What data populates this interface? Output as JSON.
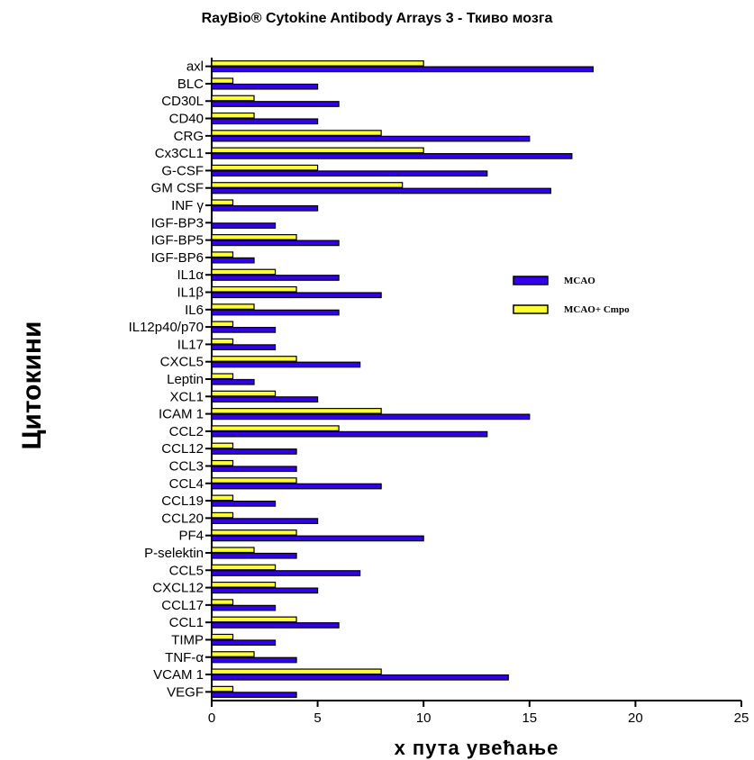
{
  "chart_data": {
    "type": "bar",
    "orientation": "horizontal",
    "title": "RayBio® Cytokine Antibody Arrays 3 -  Ткиво мозга",
    "xlabel": "x пута увећање",
    "ylabel": "Цитокини",
    "xlim": [
      0,
      25
    ],
    "xticks": [
      0,
      5,
      10,
      15,
      20,
      25
    ],
    "grid": false,
    "legend_position": "right-middle",
    "categories": [
      "axl",
      "BLC",
      "CD30L",
      "CD40",
      "CRG",
      "Cx3CL1",
      "G-CSF",
      "GM CSF",
      "INF γ",
      "IGF-BP3",
      "IGF-BP5",
      "IGF-BP6",
      "IL1α",
      "IL1β",
      "IL6",
      "IL12p40/p70",
      "IL17",
      "CXCL5",
      "Leptin",
      "XCL1",
      "ICAM 1",
      "CCL2",
      "CCL12",
      "CCL3",
      "CCL4",
      "CCL19",
      "CCL20",
      "PF4",
      "P-selektin",
      "CCL5",
      "CXCL12",
      "CCL17",
      "CCL1",
      "TIMP",
      "TNF-α",
      "VCAM 1",
      "VEGF"
    ],
    "series": [
      {
        "name": "MCAO",
        "color": "#3300ee",
        "values": [
          18,
          5,
          6,
          5,
          15,
          17,
          13,
          16,
          5,
          3,
          6,
          2,
          6,
          8,
          6,
          3,
          3,
          7,
          2,
          5,
          15,
          13,
          4,
          4,
          8,
          3,
          5,
          10,
          4,
          7,
          5,
          3,
          6,
          3,
          4,
          14,
          4
        ]
      },
      {
        "name": "MCAO+ Cmpo",
        "color": "#ffff33",
        "values": [
          10,
          1,
          2,
          2,
          8,
          10,
          5,
          9,
          1,
          0,
          4,
          1,
          3,
          4,
          2,
          1,
          1,
          4,
          1,
          3,
          8,
          6,
          1,
          1,
          4,
          1,
          1,
          4,
          2,
          3,
          3,
          1,
          4,
          1,
          2,
          8,
          1
        ]
      }
    ]
  }
}
